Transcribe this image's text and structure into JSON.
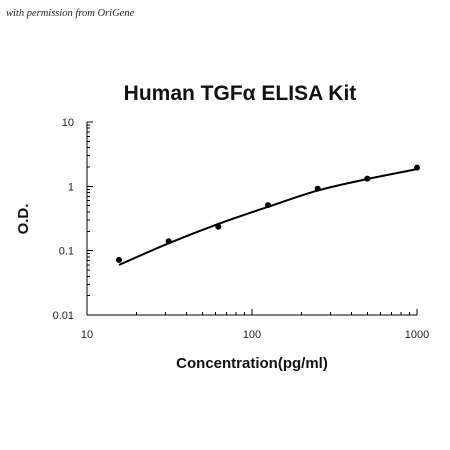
{
  "permission_text": "with permission from OriGene",
  "chart_data": {
    "type": "scatter",
    "title": "Human TGFα ELISA Kit",
    "xlabel": "Concentration(pg/ml)",
    "ylabel": "O.D.",
    "x_scale": "log",
    "y_scale": "log",
    "xlim": [
      10,
      1000
    ],
    "ylim": [
      0.01,
      10
    ],
    "x_ticks": [
      {
        "value": 10,
        "label": "10"
      },
      {
        "value": 100,
        "label": "100"
      },
      {
        "value": 1000,
        "label": "1000"
      }
    ],
    "y_ticks": [
      {
        "value": 0.01,
        "label": "0.01"
      },
      {
        "value": 0.1,
        "label": "0.1"
      },
      {
        "value": 1,
        "label": "1"
      },
      {
        "value": 10,
        "label": "10"
      }
    ],
    "grid": false,
    "legend": "none",
    "points": [
      {
        "x": 15.625,
        "y": 0.072
      },
      {
        "x": 31.25,
        "y": 0.14
      },
      {
        "x": 62.5,
        "y": 0.235
      },
      {
        "x": 125,
        "y": 0.51
      },
      {
        "x": 250,
        "y": 0.92
      },
      {
        "x": 500,
        "y": 1.32
      },
      {
        "x": 1000,
        "y": 1.95
      }
    ],
    "fit_curve": [
      {
        "x": 15.625,
        "y": 0.06
      },
      {
        "x": 31.25,
        "y": 0.13
      },
      {
        "x": 62.5,
        "y": 0.26
      },
      {
        "x": 125,
        "y": 0.48
      },
      {
        "x": 250,
        "y": 0.86
      },
      {
        "x": 500,
        "y": 1.3
      },
      {
        "x": 1000,
        "y": 1.85
      }
    ],
    "line_color": "#000000",
    "marker_color": "#000000"
  }
}
